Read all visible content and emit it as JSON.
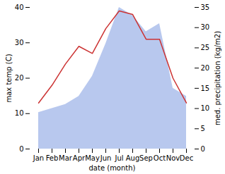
{
  "chart_data": {
    "type": "line",
    "categories": [
      "Jan",
      "Feb",
      "Mar",
      "Apr",
      "May",
      "Jun",
      "Jul",
      "Aug",
      "Sep",
      "Oct",
      "Nov",
      "Dec"
    ],
    "xlabel": "date (month)",
    "ylabel": "max temp (C)",
    "y2label": "med. precipitation (kg/m2)",
    "series": [
      {
        "type": "area",
        "axis": "y2",
        "color": "#b8c8ee",
        "values": [
          9,
          10,
          11,
          13,
          18,
          26,
          35,
          33,
          29,
          31,
          15,
          13
        ]
      },
      {
        "type": "line",
        "color": "#cc3333",
        "values": [
          13,
          18,
          24,
          29,
          27,
          34,
          39,
          38,
          31,
          31,
          20,
          13
        ]
      }
    ],
    "ylim": [
      0,
      40
    ],
    "yticks": [
      0,
      10,
      20,
      30,
      40
    ],
    "y2lim": [
      0,
      35
    ],
    "y2ticks": [
      0,
      5,
      10,
      15,
      20,
      25,
      30,
      35
    ],
    "grid": false
  }
}
